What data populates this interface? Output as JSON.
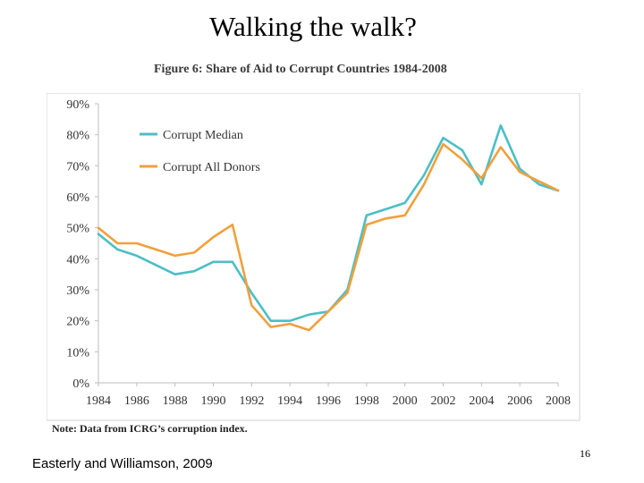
{
  "slide": {
    "title": "Walking the walk?",
    "figure_caption": "Figure 6: Share of Aid to Corrupt Countries 1984-2008",
    "note": "Note: Data from ICRG’s corruption index.",
    "credit": "Easterly and Williamson, 2009",
    "page_number": "16"
  },
  "chart_data": {
    "type": "line",
    "title": "Figure 6: Share of Aid to Corrupt Countries 1984-2008",
    "xlabel": "",
    "ylabel": "",
    "xlim": [
      1984,
      2008
    ],
    "ylim": [
      0,
      90
    ],
    "x_ticks": [
      1984,
      1986,
      1988,
      1990,
      1992,
      1994,
      1996,
      1998,
      2000,
      2002,
      2004,
      2006,
      2008
    ],
    "x_tick_labels": [
      "1984",
      "1986",
      "1988",
      "1990",
      "1992",
      "1994",
      "1996",
      "1998",
      "2000",
      "2002",
      "2004",
      "2006",
      "2008"
    ],
    "y_ticks": [
      0,
      10,
      20,
      30,
      40,
      50,
      60,
      70,
      80,
      90
    ],
    "y_tick_labels": [
      "0%",
      "10%",
      "20%",
      "30%",
      "40%",
      "50%",
      "60%",
      "70%",
      "80%",
      "90%"
    ],
    "legend_position": "top-left",
    "x": [
      1984,
      1985,
      1986,
      1987,
      1988,
      1989,
      1990,
      1991,
      1992,
      1993,
      1994,
      1995,
      1996,
      1997,
      1998,
      1999,
      2000,
      2001,
      2002,
      2003,
      2004,
      2005,
      2006,
      2007,
      2008
    ],
    "series": [
      {
        "name": "Corrupt Median",
        "color": "#4bbfc6",
        "values": [
          48,
          43,
          41,
          38,
          35,
          36,
          39,
          39,
          29,
          20,
          20,
          22,
          23,
          30,
          54,
          56,
          58,
          67,
          79,
          75,
          64,
          83,
          69,
          64,
          62
        ]
      },
      {
        "name": "Corrupt All Donors",
        "color": "#f0a03c",
        "values": [
          50,
          45,
          45,
          43,
          41,
          42,
          47,
          51,
          25,
          18,
          19,
          17,
          23,
          29,
          51,
          53,
          54,
          64,
          77,
          72,
          66,
          76,
          68,
          65,
          62
        ]
      }
    ]
  }
}
